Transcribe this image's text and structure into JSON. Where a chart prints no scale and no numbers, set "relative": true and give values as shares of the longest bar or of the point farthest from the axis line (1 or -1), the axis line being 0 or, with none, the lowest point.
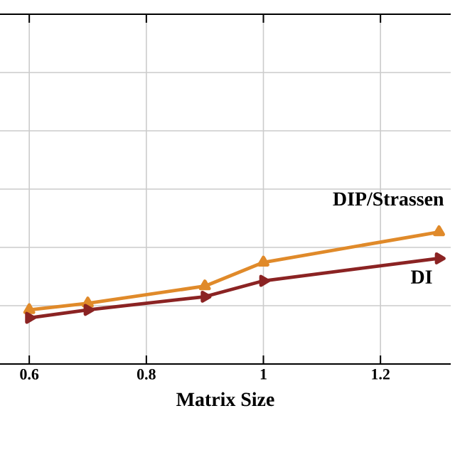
{
  "chart_data": {
    "type": "line",
    "xlabel": "Matrix Size",
    "relative": true,
    "x": [
      0.6,
      0.7,
      0.9,
      1.0,
      1.3
    ],
    "xlim": [
      0.55,
      1.32
    ],
    "xticks": [
      0.6,
      0.8,
      1,
      1.2
    ],
    "grid": true,
    "marker": "triangle",
    "line_style": "solid",
    "series": [
      {
        "name": "DIP/Strassen",
        "color": "#e08a2a",
        "values": [
          0.41,
          0.46,
          0.59,
          0.77,
          1.0
        ]
      },
      {
        "name": "DI",
        "color": "#8b2323",
        "values": [
          0.35,
          0.41,
          0.51,
          0.63,
          0.8
        ]
      }
    ]
  }
}
